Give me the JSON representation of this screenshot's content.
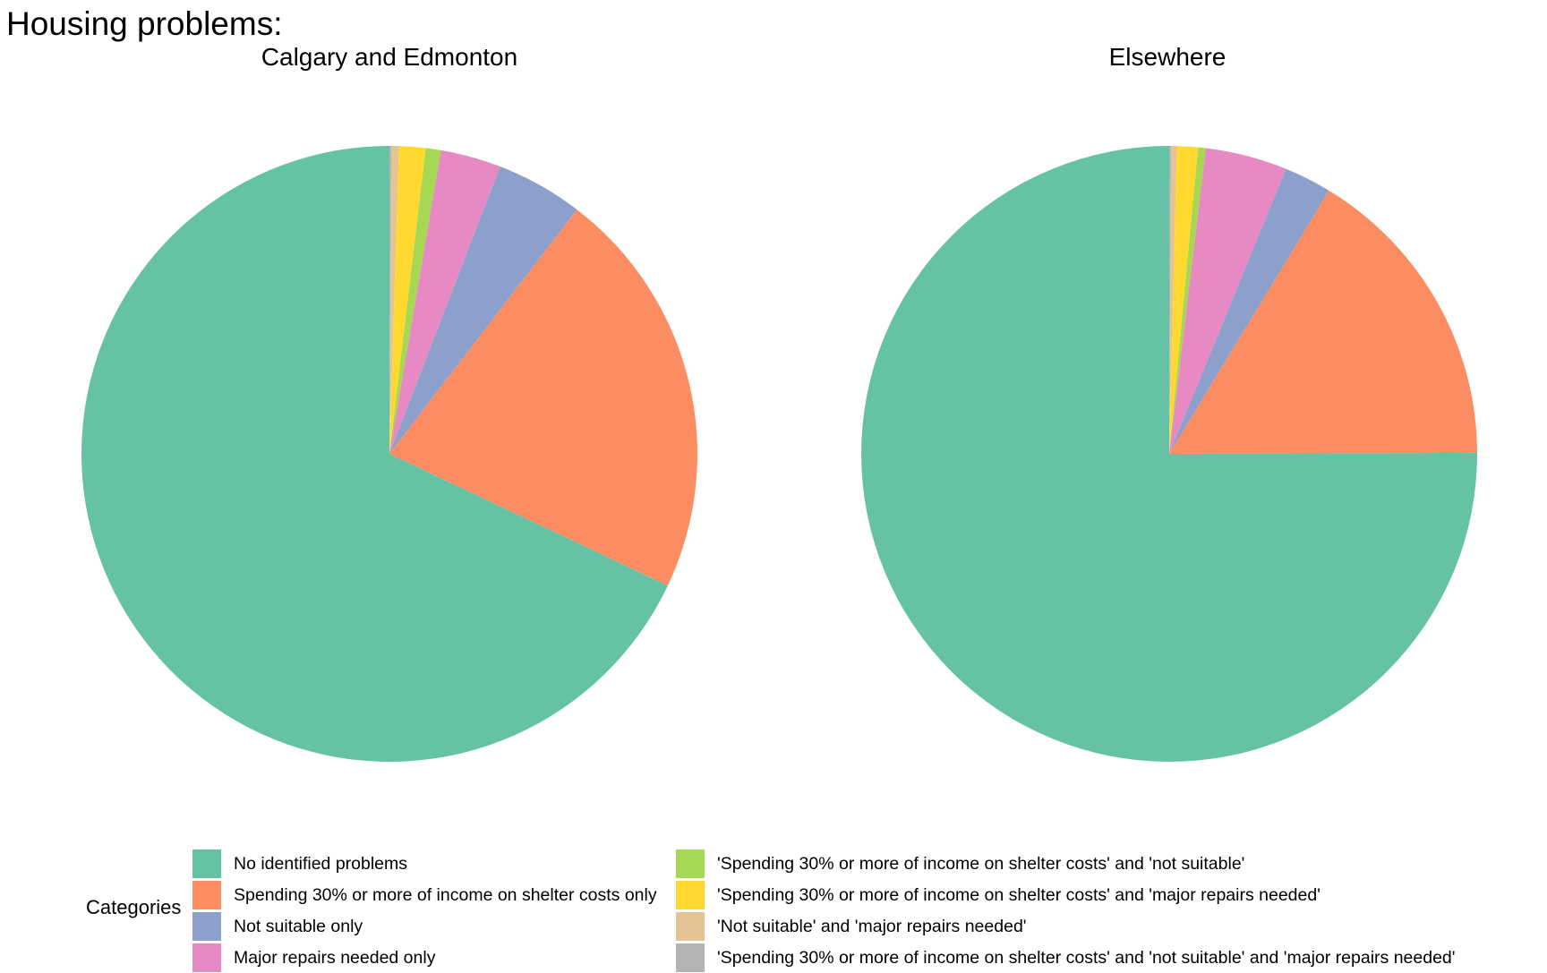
{
  "chart_data": {
    "type": "pie",
    "title": "Housing problems:",
    "panels": [
      {
        "name": "Calgary and Edmonton",
        "values": [
          68.5,
          21.8,
          4.6,
          3.2,
          0.8,
          1.4,
          0.4,
          0.1
        ]
      },
      {
        "name": "Elsewhere",
        "values": [
          75.2,
          16.3,
          2.5,
          4.3,
          0.4,
          1.1,
          0.3,
          0.1
        ]
      }
    ],
    "categories": [
      "No identified problems",
      "Spending 30% or more of income on shelter costs only",
      "Not suitable only",
      "Major repairs needed only",
      "'Spending 30% or more of income on shelter costs' and 'not suitable'",
      "'Spending 30% or more of income on shelter costs' and 'major repairs needed'",
      "'Not suitable' and 'major repairs needed'",
      "'Spending 30% or more of income on shelter costs' and 'not suitable' and 'major repairs needed'"
    ],
    "colors": [
      "#66c2a5",
      "#fc8d62",
      "#8da0cb",
      "#e78ac3",
      "#a6d854",
      "#ffd92f",
      "#e5c494",
      "#b3b3b3"
    ],
    "legend": {
      "title": "Categories",
      "placement": "bottom"
    }
  }
}
